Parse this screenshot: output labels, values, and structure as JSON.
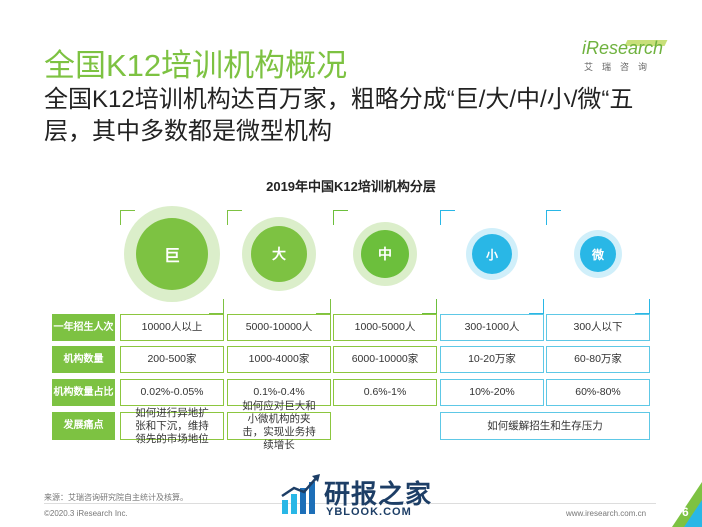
{
  "title": "全国K12培训机构概况",
  "subtitle": "全国K12培训机构达百万家，粗略分成“巨/大/中/小/微“五层，其中多数都是微型机构",
  "brand": {
    "name_i": "i",
    "name_rest": "Research",
    "sub": "艾瑞咨询"
  },
  "chart": {
    "title": "2019年中国K12培训机构分层",
    "tiers": [
      {
        "label": "巨",
        "color": "#7dc242"
      },
      {
        "label": "大",
        "color": "#7dc242"
      },
      {
        "label": "中",
        "color": "#6cbf3c"
      },
      {
        "label": "小",
        "color": "#29b7e6"
      },
      {
        "label": "微",
        "color": "#29b7e6"
      }
    ],
    "rows": [
      {
        "label": "一年招生人次",
        "cells": [
          "10000人以上",
          "5000-10000人",
          "1000-5000人",
          "300-1000人",
          "300人以下"
        ]
      },
      {
        "label": "机构数量",
        "cells": [
          "200-500家",
          "1000-4000家",
          "6000-10000家",
          "10-20万家",
          "60-80万家"
        ]
      },
      {
        "label": "机构数量占比",
        "cells": [
          "0.02%-0.05%",
          "0.1%-0.4%",
          "0.6%-1%",
          "10%-20%",
          "60%-80%"
        ]
      },
      {
        "label": "发展痛点",
        "cells": [
          "如何进行异地扩张和下沉，维持领先的市场地位",
          "如何应对巨大和小微机构的夹击，实现业务持续增长",
          "如何缓解招生和生存压力"
        ]
      }
    ]
  },
  "footer": {
    "source": "来源：艾瑞咨询研究院自主统计及核算。",
    "copyright": "©2020.3 iResearch Inc.",
    "url": "www.iresearch.com.cn",
    "page": "6"
  },
  "watermark": {
    "text": "研报之家",
    "url": "YBLOOK.COM"
  }
}
